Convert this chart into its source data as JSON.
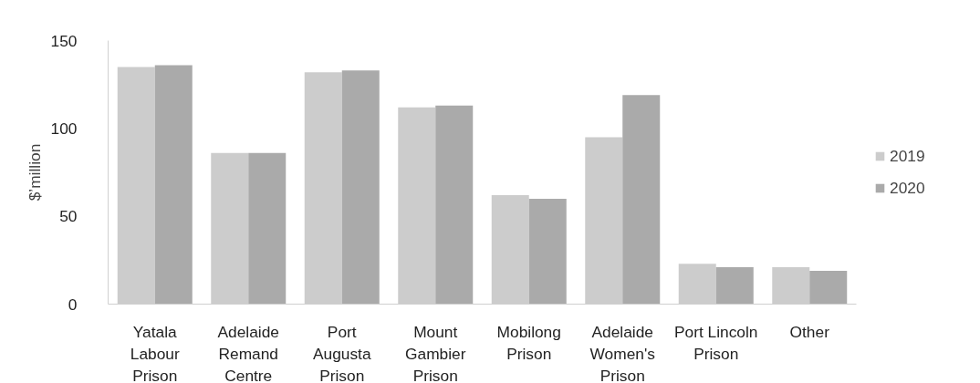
{
  "chart_data": {
    "type": "bar",
    "ylabel": "$’million",
    "categories": [
      "Yatala\nLabour\nPrison",
      "Adelaide\nRemand\nCentre",
      "Port\nAugusta\nPrison",
      "Mount\nGambier\nPrison",
      "Mobilong\nPrison",
      "Adelaide\nWomen's\nPrison",
      "Port Lincoln\nPrison",
      "Other"
    ],
    "series": [
      {
        "name": "2019",
        "color": "#cccccc",
        "values": [
          135,
          86,
          132,
          112,
          62,
          95,
          23,
          21
        ]
      },
      {
        "name": "2020",
        "color": "#aaaaaa",
        "values": [
          136,
          86,
          133,
          113,
          60,
          119,
          21,
          19
        ]
      }
    ],
    "ylim": [
      0,
      150
    ],
    "yticks": [
      0,
      50,
      100,
      150
    ],
    "grid": false,
    "legend": "right"
  }
}
